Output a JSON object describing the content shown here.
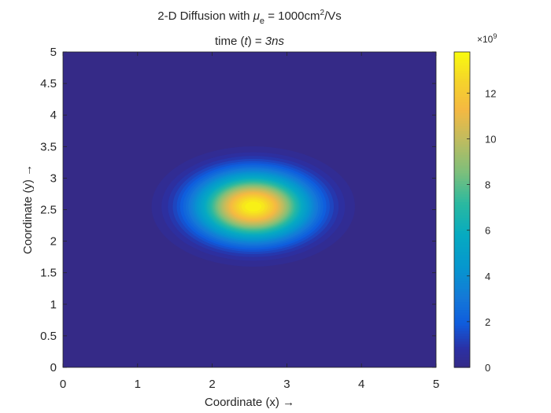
{
  "chart_data": {
    "type": "heatmap",
    "title_prefix": "2-D Diffusion with ",
    "title_symbol": "μ",
    "title_symbol_sub": "e",
    "title_suffix": " = 1000cm",
    "title_sup": "2",
    "title_end": "/Vs",
    "subtitle_prefix": "time (",
    "subtitle_var": "t",
    "subtitle_mid": ") = ",
    "subtitle_value": "3ns",
    "xlabel": "Coordinate (x) →",
    "ylabel": "Coordinate (y) →",
    "xlim": [
      0,
      5
    ],
    "ylim": [
      0,
      5
    ],
    "xticks": [
      "0",
      "1",
      "2",
      "3",
      "4",
      "5"
    ],
    "yticks": [
      "0",
      "0.5",
      "1",
      "1.5",
      "2",
      "2.5",
      "3",
      "3.5",
      "4",
      "4.5",
      "5"
    ],
    "peak": {
      "x": 2.55,
      "y": 2.55,
      "value": 13.8
    },
    "spread": {
      "sigma_x": 0.5,
      "sigma_y": 0.35
    },
    "colorbar": {
      "min": 0,
      "max": 13.8,
      "ticks": [
        "0",
        "2",
        "4",
        "6",
        "8",
        "10",
        "12"
      ],
      "multiplier": "×10",
      "exponent": "9"
    }
  }
}
